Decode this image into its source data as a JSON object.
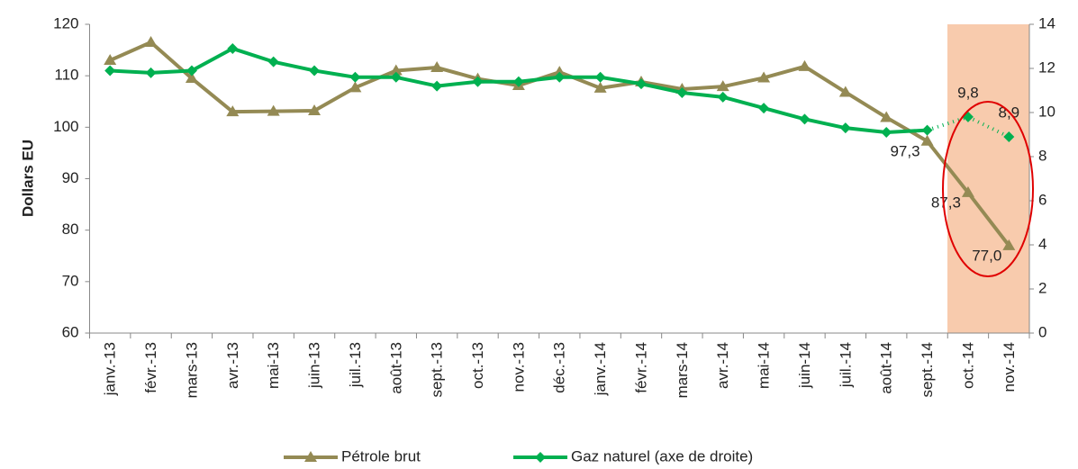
{
  "chart_data": {
    "type": "line",
    "y_label": "Dollars EU",
    "categories": [
      "janv.-13",
      "févr.-13",
      "mars-13",
      "avr.-13",
      "mai-13",
      "juin-13",
      "juil.-13",
      "août-13",
      "sept.-13",
      "oct.-13",
      "nov.-13",
      "déc.-13",
      "janv.-14",
      "févr.-14",
      "mars-14",
      "avr.-14",
      "mai-14",
      "juin-14",
      "juil.-14",
      "août-14",
      "sept.-14",
      "oct.-14",
      "nov.-14"
    ],
    "series": [
      {
        "name": "Pétrole brut",
        "color": "#948a54",
        "marker": "triangle",
        "values": [
          113,
          116.5,
          109.5,
          103,
          103.1,
          103.2,
          107.7,
          111,
          111.6,
          109.4,
          108.1,
          110.7,
          107.6,
          108.8,
          107.4,
          107.9,
          109.6,
          111.8,
          106.8,
          101.9,
          97.3,
          87.3,
          77.0
        ],
        "value_labels": [
          null,
          null,
          null,
          null,
          null,
          null,
          null,
          null,
          null,
          null,
          null,
          null,
          null,
          null,
          null,
          null,
          null,
          null,
          null,
          null,
          "97,3",
          "87,3",
          "77,0"
        ]
      },
      {
        "name": "Gaz naturel (axe de droite)",
        "color": "#00b050",
        "marker": "diamond",
        "axis": "y2",
        "dotted_from": 20,
        "values": [
          11.9,
          11.8,
          11.9,
          12.9,
          12.3,
          11.9,
          11.6,
          11.6,
          11.2,
          11.4,
          11.4,
          11.6,
          11.6,
          11.3,
          10.9,
          10.7,
          10.2,
          9.7,
          9.3,
          9.1,
          9.2,
          9.8,
          8.9
        ],
        "value_labels": [
          null,
          null,
          null,
          null,
          null,
          null,
          null,
          null,
          null,
          null,
          null,
          null,
          null,
          null,
          null,
          null,
          null,
          null,
          null,
          null,
          null,
          "9,8",
          "8,9"
        ]
      }
    ],
    "ylim": [
      60,
      120
    ],
    "yticks": [
      60,
      70,
      80,
      90,
      100,
      110,
      120
    ],
    "y2lim": [
      0,
      14
    ],
    "y2ticks": [
      0,
      2,
      4,
      6,
      8,
      10,
      12,
      14
    ],
    "legend": "bottom"
  }
}
